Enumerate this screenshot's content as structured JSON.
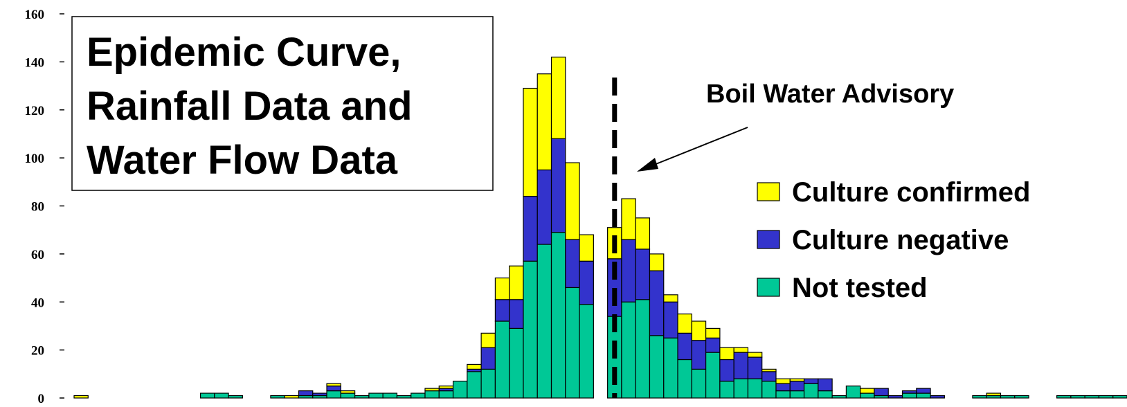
{
  "chart_data": {
    "type": "bar",
    "stacked": true,
    "title_lines": [
      "Epidemic Curve,",
      "Rainfall Data and",
      "Water Flow Data"
    ],
    "xlabel": "",
    "ylabel": "",
    "ylim": [
      0,
      160
    ],
    "yticks": [
      0,
      20,
      40,
      60,
      80,
      100,
      120,
      140,
      160
    ],
    "annotation": "Boil Water Advisory",
    "annotation_index": 38,
    "legend_position": "right",
    "series": [
      {
        "name": "Not tested",
        "color": "#00c896",
        "values": [
          0,
          0,
          0,
          0,
          0,
          0,
          0,
          0,
          0,
          2,
          2,
          1,
          0,
          0,
          1,
          0,
          1,
          1,
          3,
          2,
          1,
          2,
          2,
          1,
          2,
          3,
          3,
          7,
          11,
          12,
          32,
          29,
          57,
          64,
          69,
          46,
          39,
          0,
          34,
          40,
          41,
          26,
          25,
          16,
          12,
          19,
          7,
          8,
          8,
          7,
          3,
          3,
          6,
          3,
          1,
          5,
          2,
          1,
          0,
          2,
          2,
          0,
          0,
          0,
          1,
          1,
          1,
          1,
          0,
          0,
          1,
          1,
          1,
          1,
          1
        ]
      },
      {
        "name": "Culture negative",
        "color": "#3333cc",
        "values": [
          0,
          0,
          0,
          0,
          0,
          0,
          0,
          0,
          0,
          0,
          0,
          0,
          0,
          0,
          0,
          0,
          2,
          1,
          2,
          0,
          0,
          0,
          0,
          0,
          0,
          0,
          1,
          0,
          1,
          9,
          9,
          12,
          27,
          31,
          39,
          20,
          18,
          0,
          24,
          26,
          21,
          27,
          15,
          11,
          12,
          6,
          9,
          11,
          9,
          4,
          3,
          4,
          2,
          5,
          0,
          0,
          0,
          3,
          1,
          1,
          2,
          1,
          0,
          0,
          0,
          0,
          0,
          0,
          0,
          0,
          0,
          0,
          0,
          0,
          0
        ]
      },
      {
        "name": "Culture confirmed",
        "color": "#ffff00",
        "values": [
          1,
          0,
          0,
          0,
          0,
          0,
          0,
          0,
          0,
          0,
          0,
          0,
          0,
          0,
          0,
          1,
          0,
          0,
          1,
          1,
          0,
          0,
          0,
          0,
          0,
          1,
          1,
          0,
          2,
          6,
          9,
          14,
          45,
          40,
          34,
          32,
          11,
          0,
          13,
          17,
          13,
          7,
          3,
          8,
          8,
          4,
          5,
          2,
          2,
          1,
          2,
          1,
          0,
          0,
          0,
          0,
          2,
          0,
          0,
          0,
          0,
          0,
          0,
          0,
          0,
          1,
          0,
          0,
          0,
          0,
          0,
          0,
          0,
          0,
          0
        ]
      }
    ]
  }
}
